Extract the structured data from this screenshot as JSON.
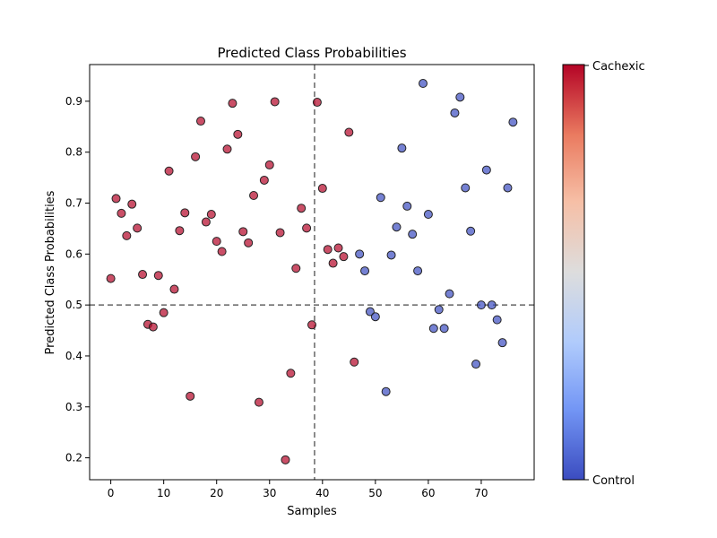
{
  "chart_data": {
    "type": "scatter",
    "title": "Predicted Class Probabilities",
    "xlabel": "Samples",
    "ylabel": "Predicted Class Probabilities",
    "xlim": [
      -4,
      80
    ],
    "ylim": [
      0.157,
      0.972
    ],
    "xticks": [
      0,
      10,
      20,
      30,
      40,
      50,
      60,
      70
    ],
    "yticks": [
      0.2,
      0.3,
      0.4,
      0.5,
      0.6,
      0.7,
      0.8,
      0.9
    ],
    "hline": 0.5,
    "vline": 38.5,
    "grid": false,
    "colorbar": {
      "top_label": "Cachexic",
      "bottom_label": "Control",
      "colormap": "coolwarm",
      "colors": [
        "#3b4cc0",
        "#7396f5",
        "#b0cbfc",
        "#dddddd",
        "#f6bfa6",
        "#ea7b60",
        "#b40426"
      ]
    },
    "series": [
      {
        "class": "Cachexic",
        "color": "#b40426",
        "x": [
          0,
          1,
          2,
          3,
          4,
          5,
          6,
          7,
          8,
          9,
          10,
          11,
          12,
          13,
          14,
          15,
          16,
          17,
          18,
          19,
          20,
          21,
          22,
          23,
          24,
          25,
          26,
          27,
          28,
          29,
          30,
          31,
          32,
          33,
          34,
          35,
          36,
          37,
          38,
          39,
          40,
          41,
          42,
          43,
          44,
          45,
          46
        ],
        "y": [
          0.552,
          0.709,
          0.68,
          0.636,
          0.698,
          0.651,
          0.56,
          0.462,
          0.457,
          0.558,
          0.485,
          0.763,
          0.531,
          0.646,
          0.681,
          0.321,
          0.791,
          0.861,
          0.663,
          0.678,
          0.625,
          0.605,
          0.806,
          0.896,
          0.835,
          0.644,
          0.622,
          0.715,
          0.309,
          0.745,
          0.775,
          0.899,
          0.642,
          0.196,
          0.366,
          0.572,
          0.69,
          0.651,
          0.461,
          0.898,
          0.729,
          0.609,
          0.582,
          0.612,
          0.595,
          0.839,
          0.388
        ]
      },
      {
        "class": "Control",
        "color": "#3b4cc0",
        "x": [
          47,
          48,
          49,
          50,
          51,
          52,
          53,
          54,
          55,
          56,
          57,
          58,
          59,
          60,
          61,
          62,
          63,
          64,
          65,
          66,
          67,
          68,
          69,
          70,
          71,
          72,
          73,
          74,
          75,
          76
        ],
        "y": [
          0.6,
          0.567,
          0.487,
          0.477,
          0.711,
          0.33,
          0.598,
          0.653,
          0.808,
          0.694,
          0.639,
          0.567,
          0.935,
          0.678,
          0.454,
          0.491,
          0.454,
          0.522,
          0.877,
          0.908,
          0.73,
          0.645,
          0.384,
          0.5,
          0.765,
          0.5,
          0.471,
          0.426,
          0.73,
          0.859
        ]
      }
    ]
  }
}
